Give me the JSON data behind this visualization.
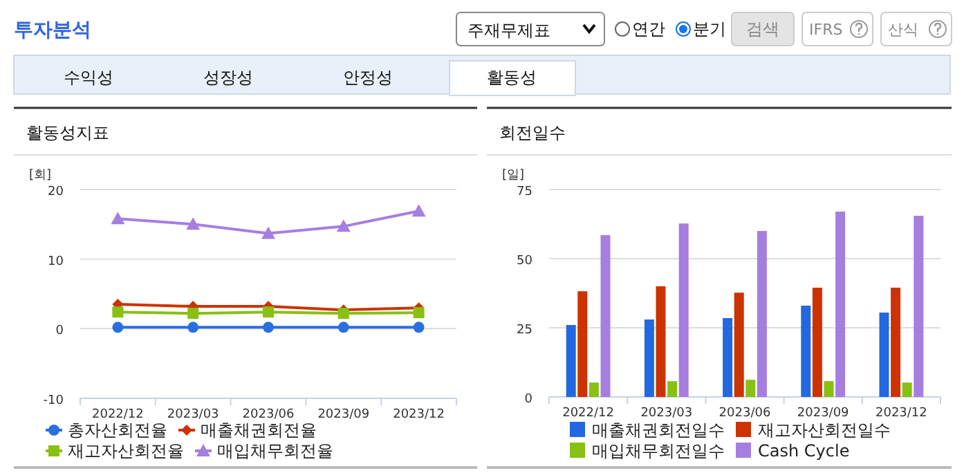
{
  "chart_data": [
    {
      "type": "other",
      "title": "투자분석",
      "annotations": [
        "주재무제표",
        "연간",
        "분기",
        "검색",
        "IFRS",
        "산식",
        "수익성",
        "성장성",
        "안정성",
        "활동성"
      ]
    },
    {
      "type": "line",
      "title": "활동성지표",
      "ylabel": "[회]",
      "categories": [
        "2022/12",
        "2023/03",
        "2023/06",
        "2023/09",
        "2023/12"
      ],
      "ylim": [
        -10,
        20
      ],
      "yticks": [
        -10,
        0,
        10,
        20
      ],
      "grid": "y",
      "legend": "bottom",
      "series": [
        {
          "name": "총자산회전율",
          "color": "#2a6fe0",
          "marker": "circle",
          "values": [
            0.2,
            0.2,
            0.2,
            0.2,
            0.2
          ]
        },
        {
          "name": "매출채권회전율",
          "color": "#cc3300",
          "marker": "diamond",
          "values": [
            3.5,
            3.2,
            3.2,
            2.7,
            3.0
          ]
        },
        {
          "name": "재고자산회전율",
          "color": "#88c014",
          "marker": "square",
          "values": [
            2.4,
            2.2,
            2.4,
            2.2,
            2.3
          ]
        },
        {
          "name": "매입채무회전율",
          "color": "#a67ee0",
          "marker": "triangle",
          "values": [
            15.8,
            15.0,
            13.7,
            14.7,
            16.9
          ]
        }
      ]
    },
    {
      "type": "bar",
      "title": "회전일수",
      "ylabel": "[일]",
      "categories": [
        "2022/12",
        "2023/03",
        "2023/06",
        "2023/09",
        "2023/12"
      ],
      "ylim": [
        0,
        75
      ],
      "yticks": [
        0,
        25,
        50,
        75
      ],
      "grid": "y",
      "legend": "bottom",
      "series": [
        {
          "name": "매출채권회전일수",
          "color": "#2268e0",
          "values": [
            26.0,
            28.0,
            28.5,
            33.0,
            30.5
          ]
        },
        {
          "name": "재고자산회전일수",
          "color": "#cc3300",
          "values": [
            38.2,
            40.0,
            37.7,
            39.5,
            39.5
          ]
        },
        {
          "name": "매입채무회전일수",
          "color": "#88c014",
          "values": [
            5.2,
            5.7,
            6.2,
            5.7,
            5.2
          ]
        },
        {
          "name": "Cash Cycle",
          "color": "#a67ee0",
          "values": [
            58.5,
            62.7,
            60.0,
            67.0,
            65.5
          ]
        }
      ]
    }
  ]
}
